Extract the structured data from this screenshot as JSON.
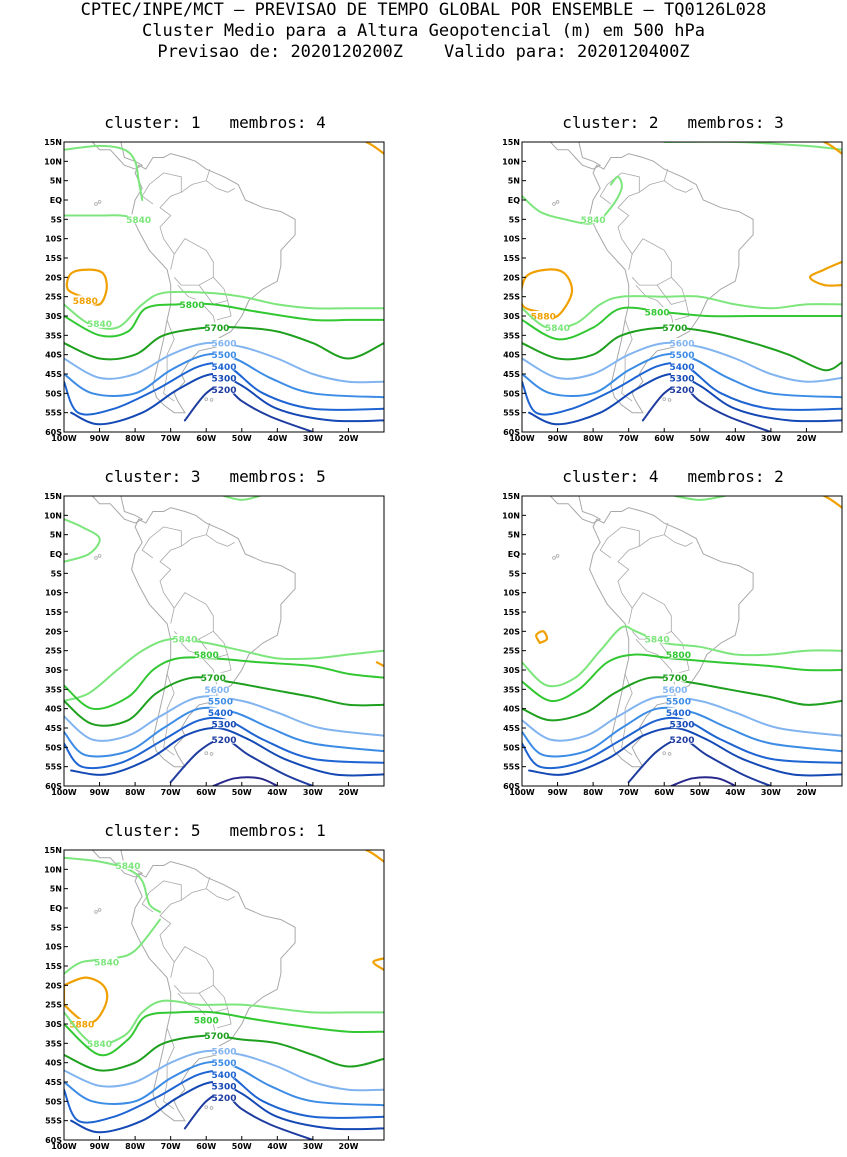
{
  "header": {
    "line1": "CPTEC/INPE/MCT – PREVISAO DE TEMPO GLOBAL POR ENSEMBLE – TQ0126L028",
    "line2": "Cluster Medio para a Altura Geopotencial (m) em 500 hPa",
    "line3": "Previsao de: 2020120200Z    Valido para: 2020120400Z"
  },
  "axes": {
    "lat_labels": [
      "15N",
      "10N",
      "5N",
      "EQ",
      "5S",
      "10S",
      "15S",
      "20S",
      "25S",
      "30S",
      "35S",
      "40S",
      "45S",
      "50S",
      "55S",
      "60S"
    ],
    "lon_labels": [
      "100W",
      "90W",
      "80W",
      "70W",
      "60W",
      "50W",
      "40W",
      "30W",
      "20W"
    ]
  },
  "colors": {
    "5880": "#f0a000",
    "5840": "#7ce67c",
    "5800": "#32c832",
    "5700": "#1ea01e",
    "5600": "#82b4f0",
    "5500": "#3c8ce6",
    "5400": "#1e64d2",
    "5300": "#1448b4",
    "5200": "#1e3ca0",
    "low": "#28288c",
    "coast": "#a8a8a8"
  },
  "panels": [
    {
      "label": "cluster:",
      "cluster": "1",
      "members_label": "membros:",
      "members": "4",
      "contours": {
        "5840": "5840",
        "5880": "5880",
        "5800": "5800",
        "5700": "5700",
        "5600": "5600",
        "5500": "5500",
        "5400": "5400",
        "5300": "5300",
        "5200": "5200"
      }
    },
    {
      "label": "cluster:",
      "cluster": "2",
      "members_label": "membros:",
      "members": "3",
      "contours": {
        "5840": "5840",
        "5880": "5880",
        "5800": "5800",
        "5700": "5700",
        "5600": "5600",
        "5500": "5500",
        "5400": "5400",
        "5300": "5300",
        "5200": "5200"
      }
    },
    {
      "label": "cluster:",
      "cluster": "3",
      "members_label": "membros:",
      "members": "5",
      "contours": {
        "5840": "5840",
        "5800": "5800",
        "5700": "5700",
        "5600": "5600",
        "5500": "5500",
        "5400": "5400",
        "5300": "5300",
        "5200": "5200"
      }
    },
    {
      "label": "cluster:",
      "cluster": "4",
      "members_label": "membros:",
      "members": "2",
      "contours": {
        "5840": "5840",
        "5800": "5800",
        "5700": "5700",
        "5600": "5600",
        "5500": "5500",
        "5400": "5400",
        "5300": "5300",
        "5200": "5200"
      }
    },
    {
      "label": "cluster:",
      "cluster": "5",
      "members_label": "membros:",
      "members": "1",
      "contours": {
        "5840": "5840",
        "5880": "5880",
        "5800": "5800",
        "5700": "5700",
        "5600": "5600",
        "5500": "5500",
        "5400": "5400",
        "5300": "5300",
        "5200": "5200"
      }
    }
  ]
}
